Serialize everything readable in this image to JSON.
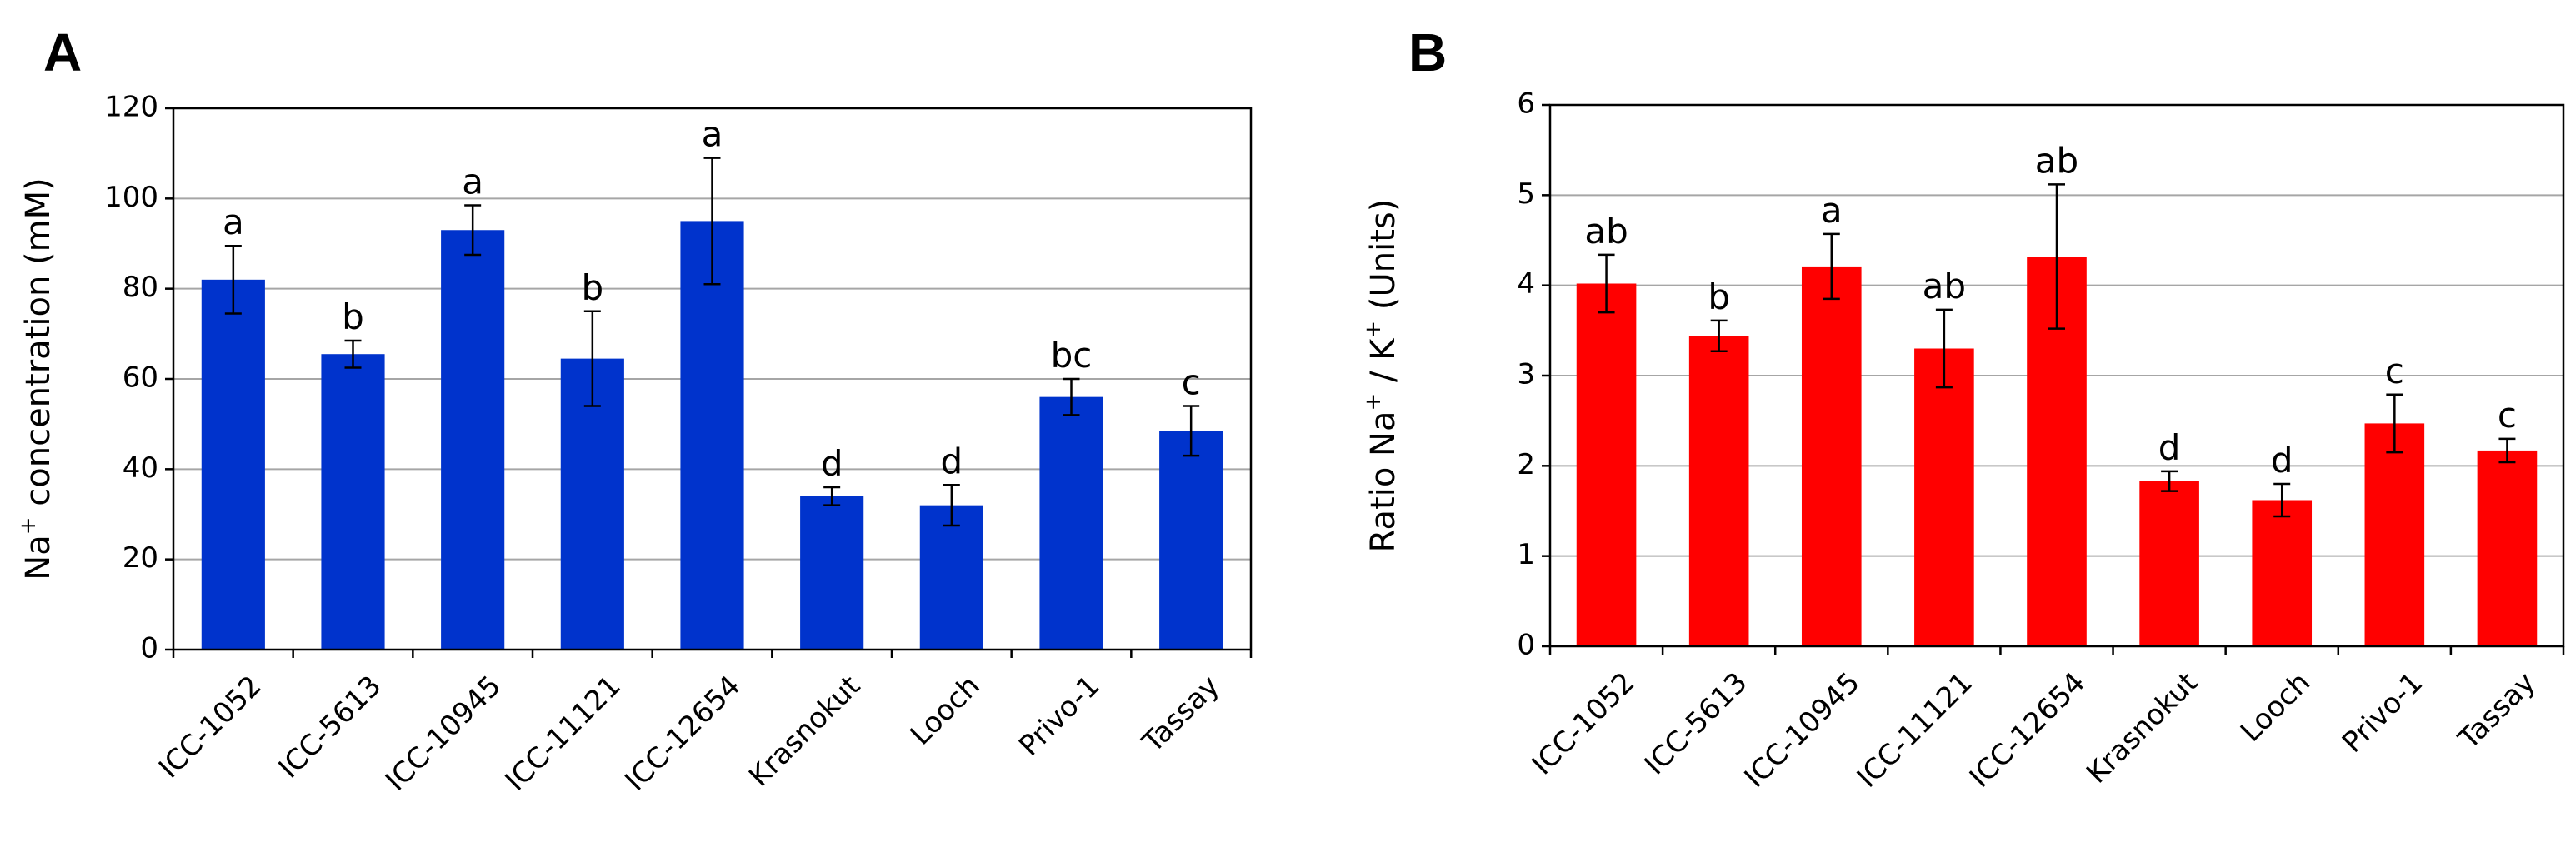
{
  "chart_data": [
    {
      "panel": "A",
      "type": "bar",
      "ylabel_main": "Na",
      "ylabel_sup": "+",
      "ylabel_rest": " concentration (mM)",
      "ylim": [
        0,
        120
      ],
      "yticks": [
        0,
        20,
        40,
        60,
        80,
        100,
        120
      ],
      "grid": true,
      "bar_color": "#0033cc",
      "categories": [
        "ICC-1052",
        "ICC-5613",
        "ICC-10945",
        "ICC-11121",
        "ICC-12654",
        "Krasnokut",
        "Looch",
        "Privo-1",
        "Tassay"
      ],
      "values": [
        82,
        65.5,
        93,
        64.5,
        95,
        34,
        32,
        56,
        48.5
      ],
      "errors": [
        7.5,
        3,
        5.5,
        10.5,
        14,
        2,
        4.5,
        4,
        5.5
      ],
      "letters": [
        "a",
        "b",
        "a",
        "b",
        "a",
        "d",
        "d",
        "bc",
        "c"
      ]
    },
    {
      "panel": "B",
      "type": "bar",
      "ylabel_main": "Ratio Na",
      "ylabel_sup": "+",
      "ylabel_mid": " / K",
      "ylabel_sup2": "+",
      "ylabel_rest": " (Units)",
      "ylim": [
        0,
        6
      ],
      "yticks": [
        0,
        1,
        2,
        3,
        4,
        5,
        6
      ],
      "grid": true,
      "bar_color": "#ff0000",
      "categories": [
        "ICC-1052",
        "ICC-5613",
        "ICC-10945",
        "ICC-11121",
        "ICC-12654",
        "Krasnokut",
        "Looch",
        "Privo-1",
        "Tassay"
      ],
      "values": [
        4.02,
        3.44,
        4.21,
        3.3,
        4.32,
        1.83,
        1.62,
        2.47,
        2.17
      ],
      "errors": [
        0.32,
        0.17,
        0.36,
        0.43,
        0.8,
        0.11,
        0.18,
        0.32,
        0.13
      ],
      "letters": [
        "ab",
        "b",
        "a",
        "ab",
        "ab",
        "d",
        "d",
        "c",
        "c"
      ]
    }
  ]
}
